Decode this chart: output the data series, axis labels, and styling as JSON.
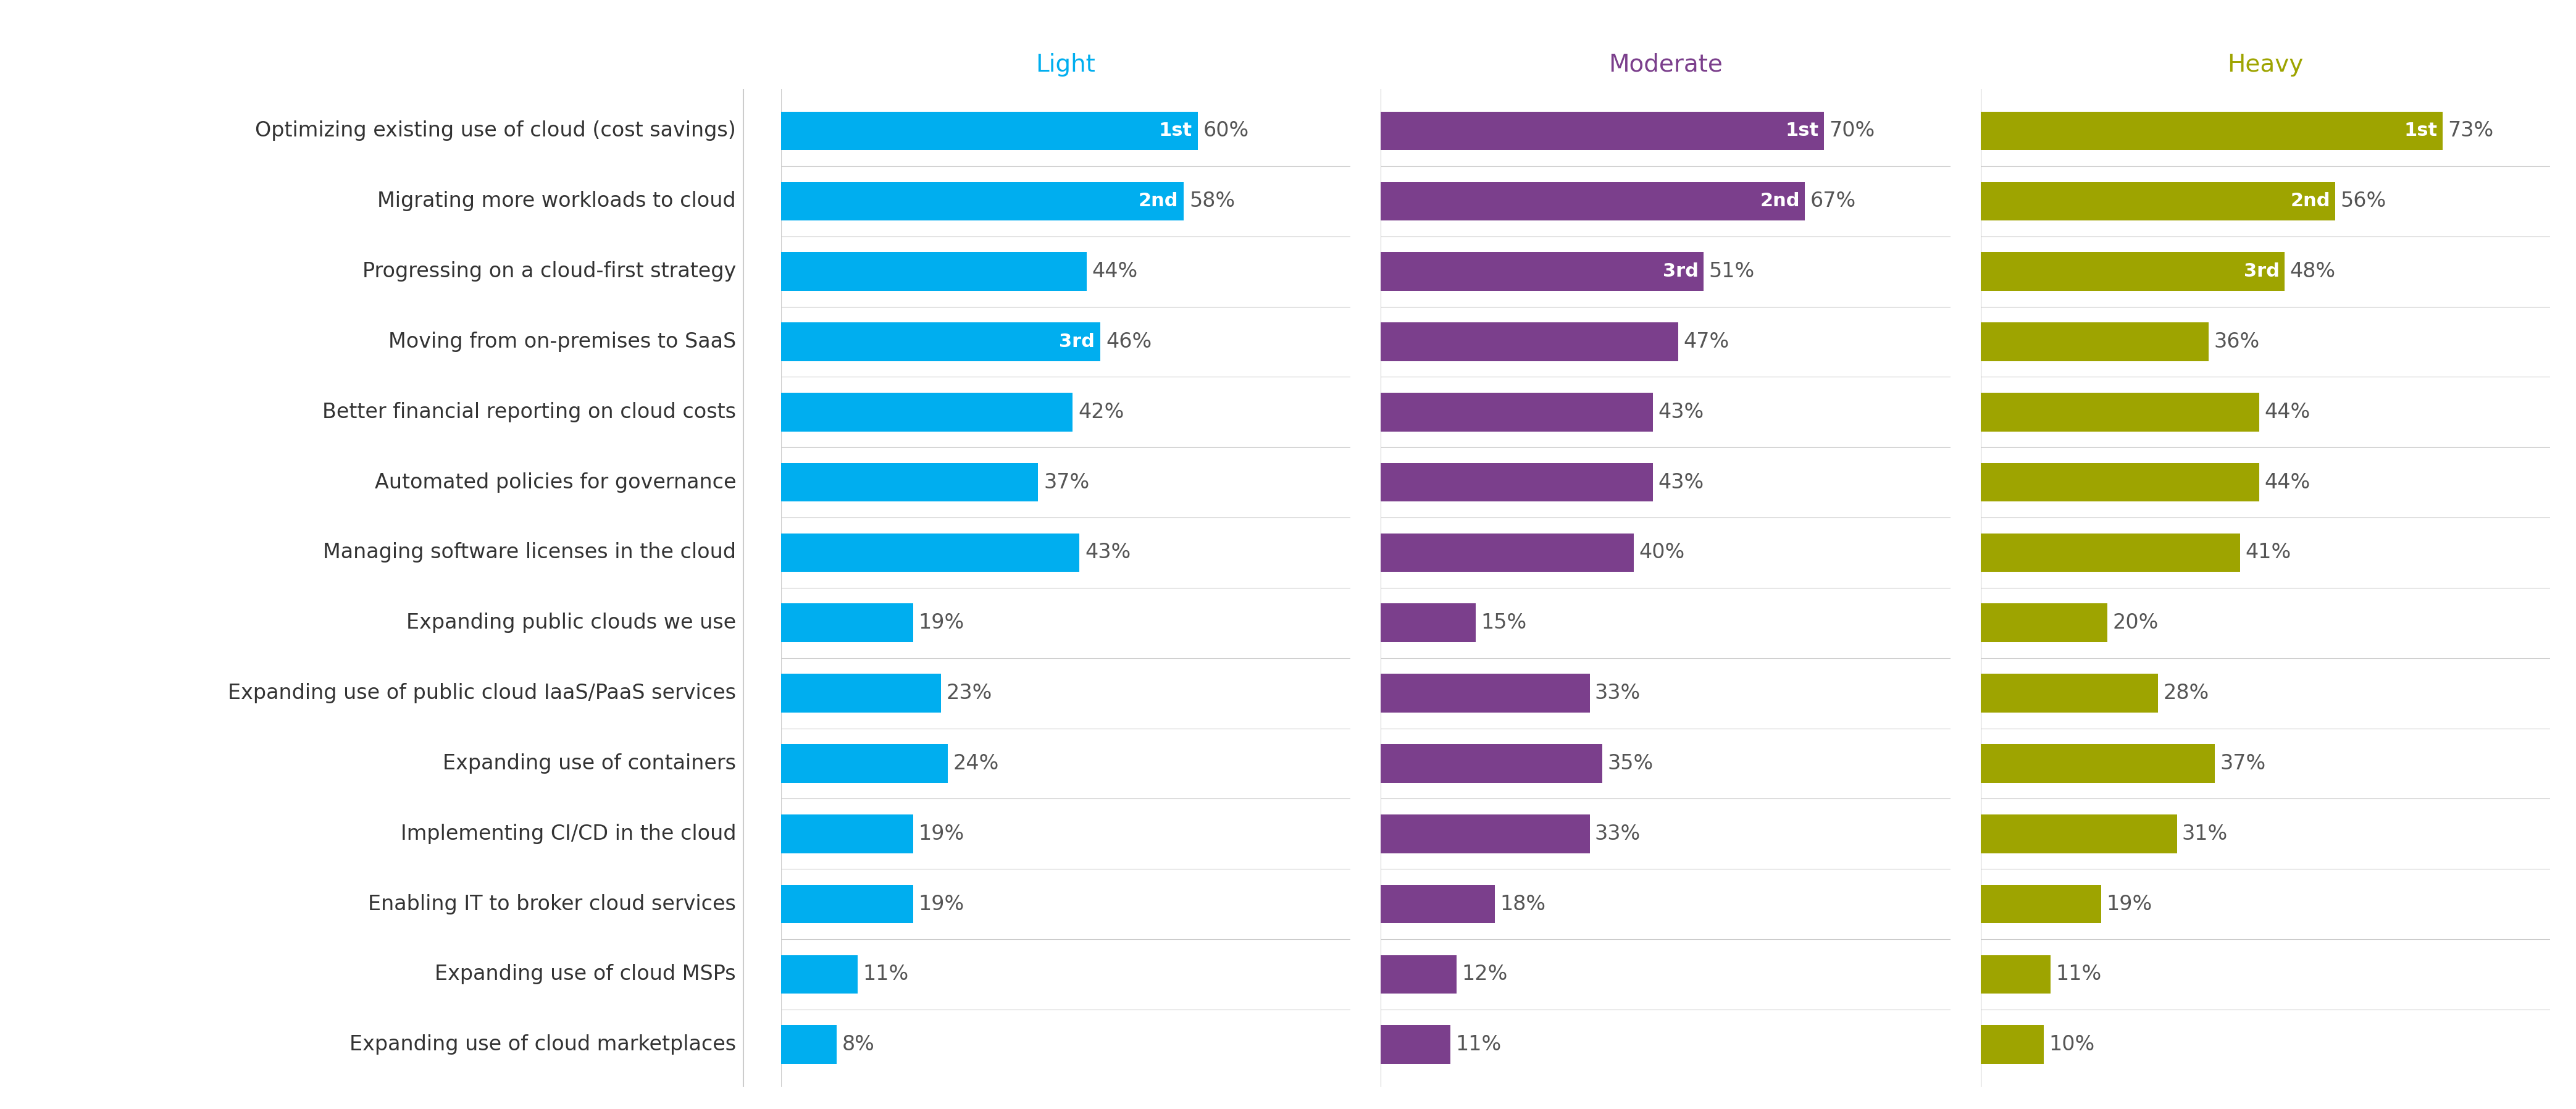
{
  "categories": [
    "Optimizing existing use of cloud (cost savings)",
    "Migrating more workloads to cloud",
    "Progressing on a cloud-first strategy",
    "Moving from on-premises to SaaS",
    "Better financial reporting on cloud costs",
    "Automated policies for governance",
    "Managing software licenses in the cloud",
    "Expanding public clouds we use",
    "Expanding use of public cloud IaaS/PaaS services",
    "Expanding use of containers",
    "Implementing CI/CD in the cloud",
    "Enabling IT to broker cloud services",
    "Expanding use of cloud MSPs",
    "Expanding use of cloud marketplaces"
  ],
  "light": [
    60,
    58,
    44,
    46,
    42,
    37,
    43,
    19,
    23,
    24,
    19,
    19,
    11,
    8
  ],
  "moderate": [
    70,
    67,
    51,
    47,
    43,
    43,
    40,
    15,
    33,
    35,
    33,
    18,
    12,
    11
  ],
  "heavy": [
    73,
    56,
    48,
    36,
    44,
    44,
    41,
    20,
    28,
    37,
    31,
    19,
    11,
    10
  ],
  "light_rank_map": {
    "0": "1st",
    "1": "2nd",
    "3": "3rd"
  },
  "moderate_rank_map": {
    "0": "1st",
    "1": "2nd",
    "2": "3rd"
  },
  "heavy_rank_map": {
    "0": "1st",
    "1": "2nd",
    "2": "3rd"
  },
  "light_color": "#00AEEF",
  "moderate_color": "#7B3F8C",
  "heavy_color": "#9EA400",
  "light_title": "Light",
  "moderate_title": "Moderate",
  "heavy_title": "Heavy",
  "light_title_color": "#00AEEF",
  "moderate_title_color": "#7B3F8C",
  "heavy_title_color": "#9EA400",
  "bar_height": 0.55,
  "background_color": "#ffffff",
  "cat_fontsize": 24,
  "val_fontsize": 24,
  "rank_fontsize": 22,
  "title_fontsize": 28,
  "pct_color": "#555555",
  "separator_color": "#cccccc",
  "spine_color": "#cccccc"
}
